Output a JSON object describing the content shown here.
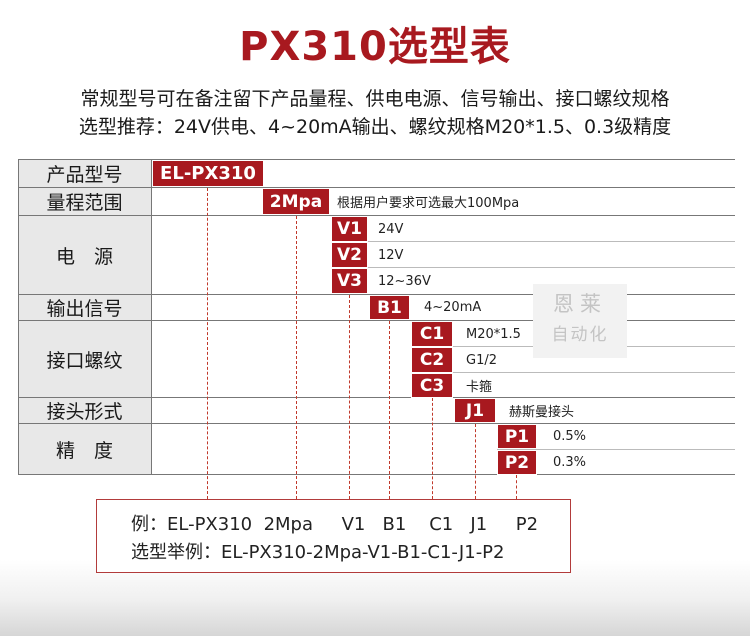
{
  "title": "PX310选型表",
  "description": {
    "line1": "常规型号可在备注留下产品量程、供电电源、信号输出、接口螺纹规格",
    "line2": "选型推荐：24V供电、4~20mA输出、螺纹规格M20*1.5、0.3级精度"
  },
  "rows": {
    "model": {
      "label": "产品型号",
      "code": "EL-PX310"
    },
    "range": {
      "label": "量程范围",
      "code": "2Mpa",
      "desc": "根据用户要求可选最大100Mpa"
    },
    "power": {
      "label": "电　源",
      "options": [
        {
          "code": "V1",
          "desc": "24V"
        },
        {
          "code": "V2",
          "desc": "12V"
        },
        {
          "code": "V3",
          "desc": "12~36V"
        }
      ]
    },
    "output": {
      "label": "输出信号",
      "code": "B1",
      "desc": "4~20mA"
    },
    "thread": {
      "label": "接口螺纹",
      "options": [
        {
          "code": "C1",
          "desc": "M20*1.5"
        },
        {
          "code": "C2",
          "desc": "G1/2"
        },
        {
          "code": "C3",
          "desc": "卡箍"
        }
      ]
    },
    "connector": {
      "label": "接头形式",
      "code": "J1",
      "desc": "赫斯曼接头"
    },
    "accuracy": {
      "label": "精　度",
      "options": [
        {
          "code": "P1",
          "desc": "0.5%"
        },
        {
          "code": "P2",
          "desc": "0.3%"
        }
      ]
    }
  },
  "watermark": {
    "line1": "恩莱",
    "line2": "自动化"
  },
  "example": {
    "line1": "例：EL-PX310  2Mpa     V1   B1    C1   J1     P2",
    "line2": "选型举例：EL-PX310-2Mpa-V1-B1-C1-J1-P2"
  },
  "colors": {
    "accent": "#a8191f",
    "label_bg": "#e8e8e8"
  }
}
